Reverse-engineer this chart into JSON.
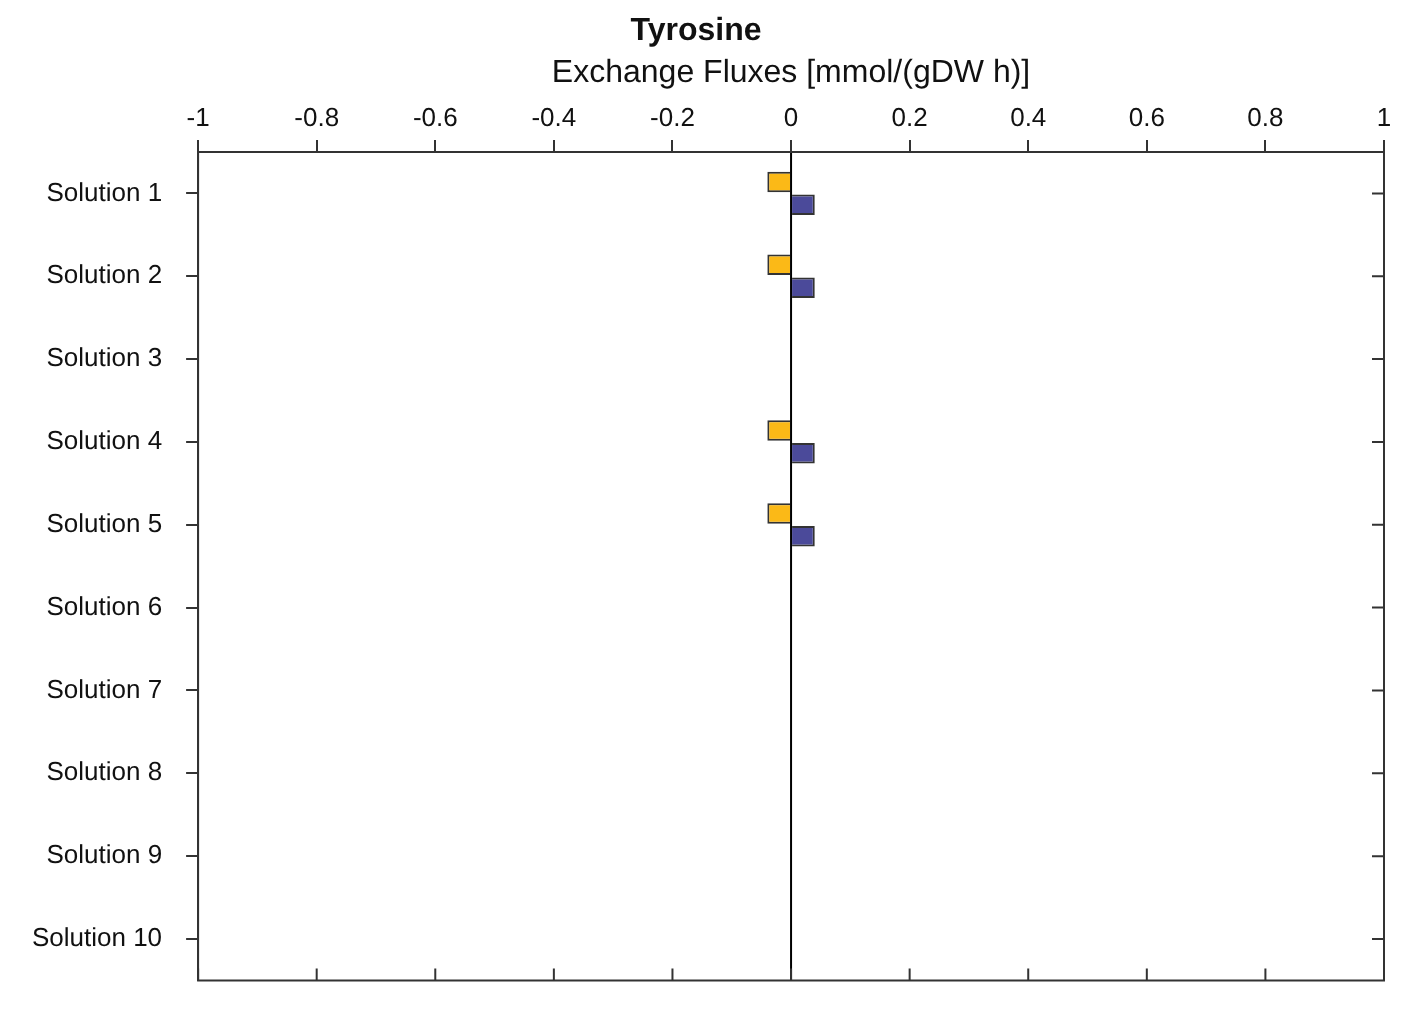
{
  "chart_data": {
    "type": "bar",
    "orientation": "horizontal",
    "title": "Tyrosine",
    "xlabel": "Exchange Fluxes [mmol/(gDW h)]",
    "categories": [
      "Solution 1",
      "Solution 2",
      "Solution 3",
      "Solution 4",
      "Solution 5",
      "Solution 6",
      "Solution 7",
      "Solution 8",
      "Solution 9",
      "Solution 10"
    ],
    "series": [
      {
        "color": "#fbb917",
        "values": [
          -0.04,
          -0.04,
          null,
          -0.04,
          -0.04,
          null,
          null,
          null,
          null,
          null
        ]
      },
      {
        "color": "#4b4a9a",
        "values": [
          0.04,
          0.04,
          null,
          0.04,
          0.04,
          null,
          null,
          null,
          null,
          null
        ]
      }
    ],
    "xlim": [
      -1,
      1
    ],
    "xticks": [
      -1,
      -0.8,
      -0.6,
      -0.4,
      -0.2,
      0,
      0.2,
      0.4,
      0.6,
      0.8,
      1
    ],
    "ref_lines": [
      {
        "axis": "x",
        "value": 0,
        "color": "#000000"
      }
    ],
    "grid": false,
    "legend": false
  }
}
